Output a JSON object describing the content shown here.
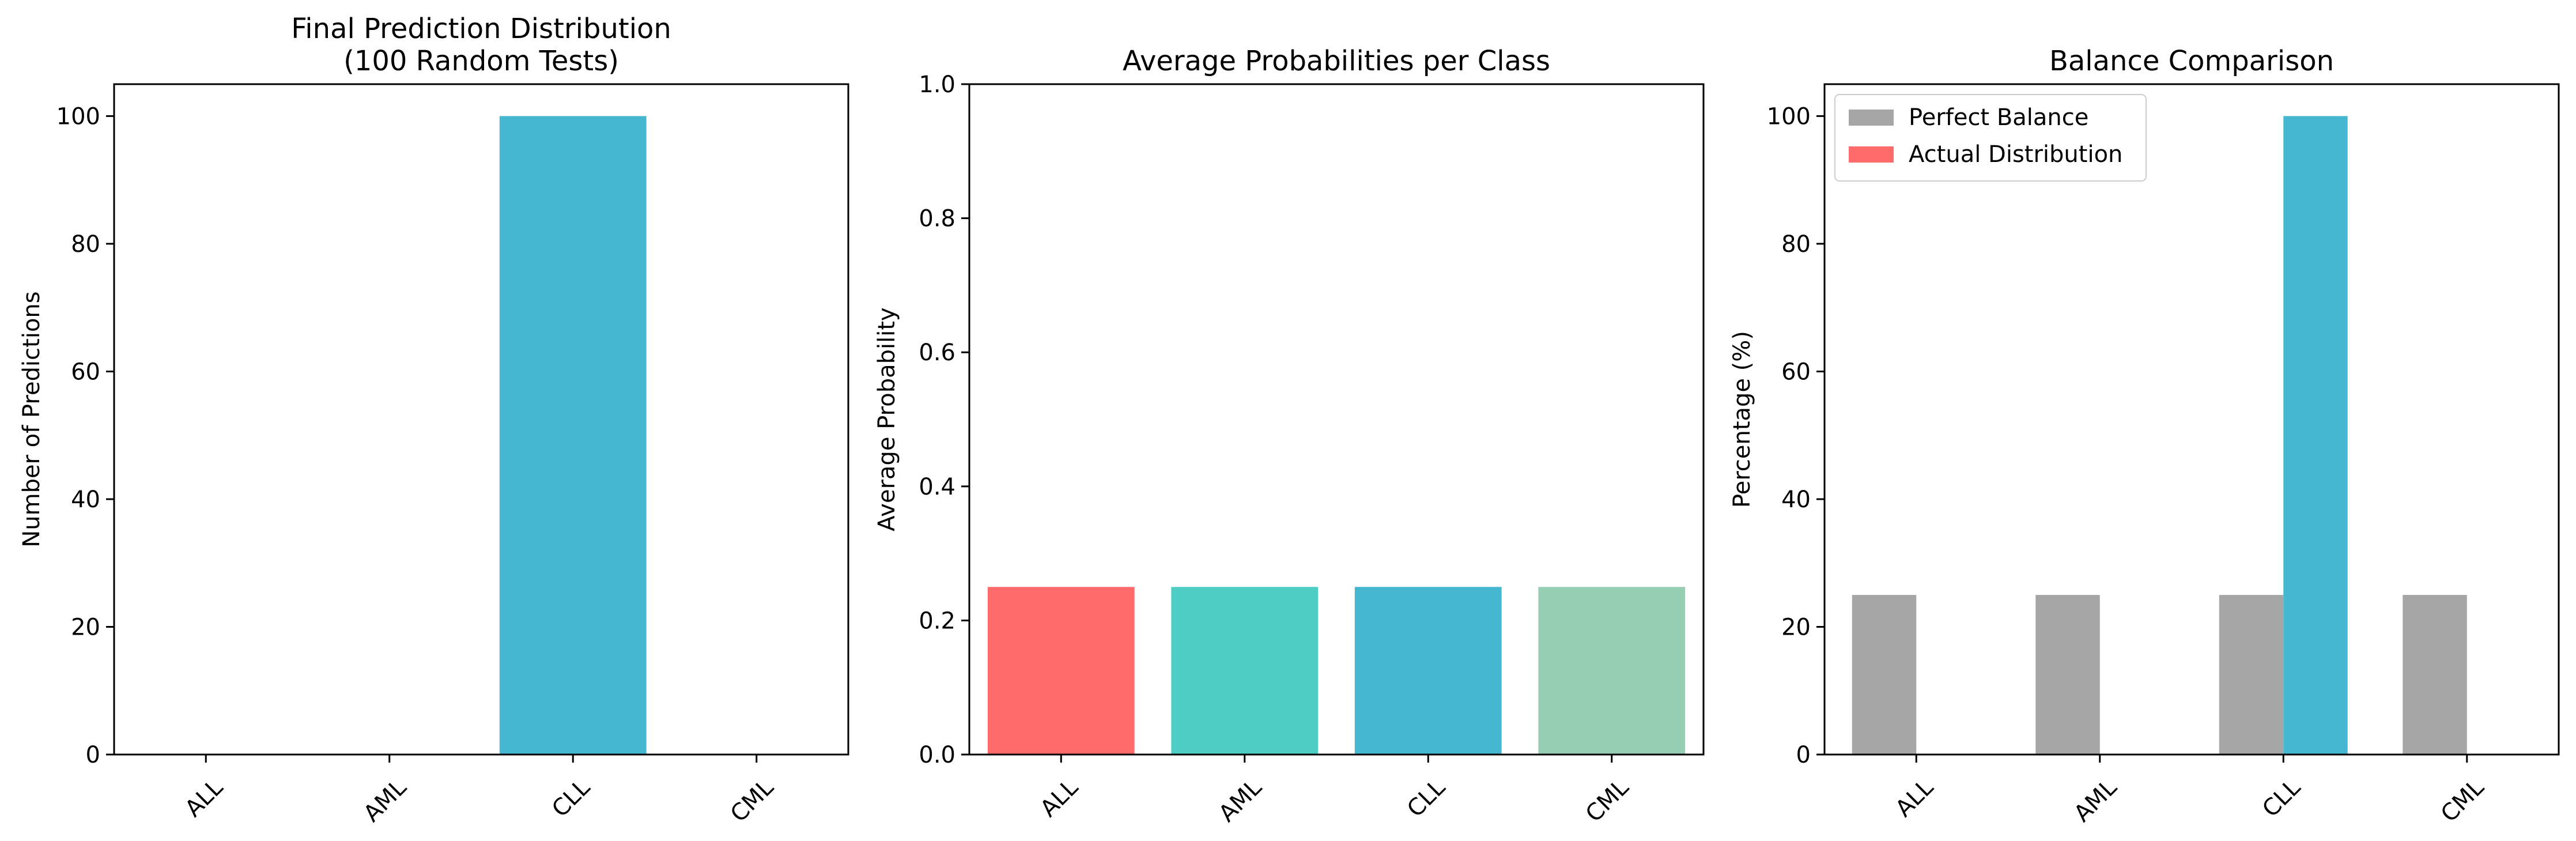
{
  "chart_data": [
    {
      "type": "bar",
      "title": "Final Prediction Distribution\n(100 Random Tests)",
      "xlabel": "",
      "ylabel": "Number of Predictions",
      "categories": [
        "ALL",
        "AML",
        "CLL",
        "CML"
      ],
      "values": [
        0,
        0,
        100,
        0
      ],
      "colors": [
        "#ff6b6b",
        "#4ecdc4",
        "#45b7d1",
        "#96ceb4"
      ],
      "ylim": [
        0,
        105
      ],
      "yticks": [
        0,
        20,
        40,
        60,
        80,
        100
      ],
      "grid": false
    },
    {
      "type": "bar",
      "title": "Average Probabilities per Class",
      "xlabel": "",
      "ylabel": "Average Probability",
      "categories": [
        "ALL",
        "AML",
        "CLL",
        "CML"
      ],
      "values": [
        0.25,
        0.25,
        0.25,
        0.25
      ],
      "colors": [
        "#ff6b6b",
        "#4ecdc4",
        "#45b7d1",
        "#96ceb4"
      ],
      "ylim": [
        0,
        1.0
      ],
      "yticks": [
        0.0,
        0.2,
        0.4,
        0.6,
        0.8,
        1.0
      ],
      "grid": false
    },
    {
      "type": "bar",
      "title": "Balance Comparison",
      "xlabel": "",
      "ylabel": "Percentage (%)",
      "categories": [
        "ALL",
        "AML",
        "CLL",
        "CML"
      ],
      "series": [
        {
          "name": "Perfect Balance",
          "values": [
            25,
            25,
            25,
            25
          ],
          "color": "#a6a6a6"
        },
        {
          "name": "Actual Distribution",
          "values": [
            0,
            0,
            100,
            0
          ],
          "color": "#ff6b6b",
          "bar_colors": [
            "#ff6b6b",
            "#4ecdc4",
            "#45b7d1",
            "#96ceb4"
          ]
        }
      ],
      "ylim": [
        0,
        105
      ],
      "yticks": [
        0,
        20,
        40,
        60,
        80,
        100
      ],
      "legend": "top-left",
      "grid": false
    }
  ]
}
